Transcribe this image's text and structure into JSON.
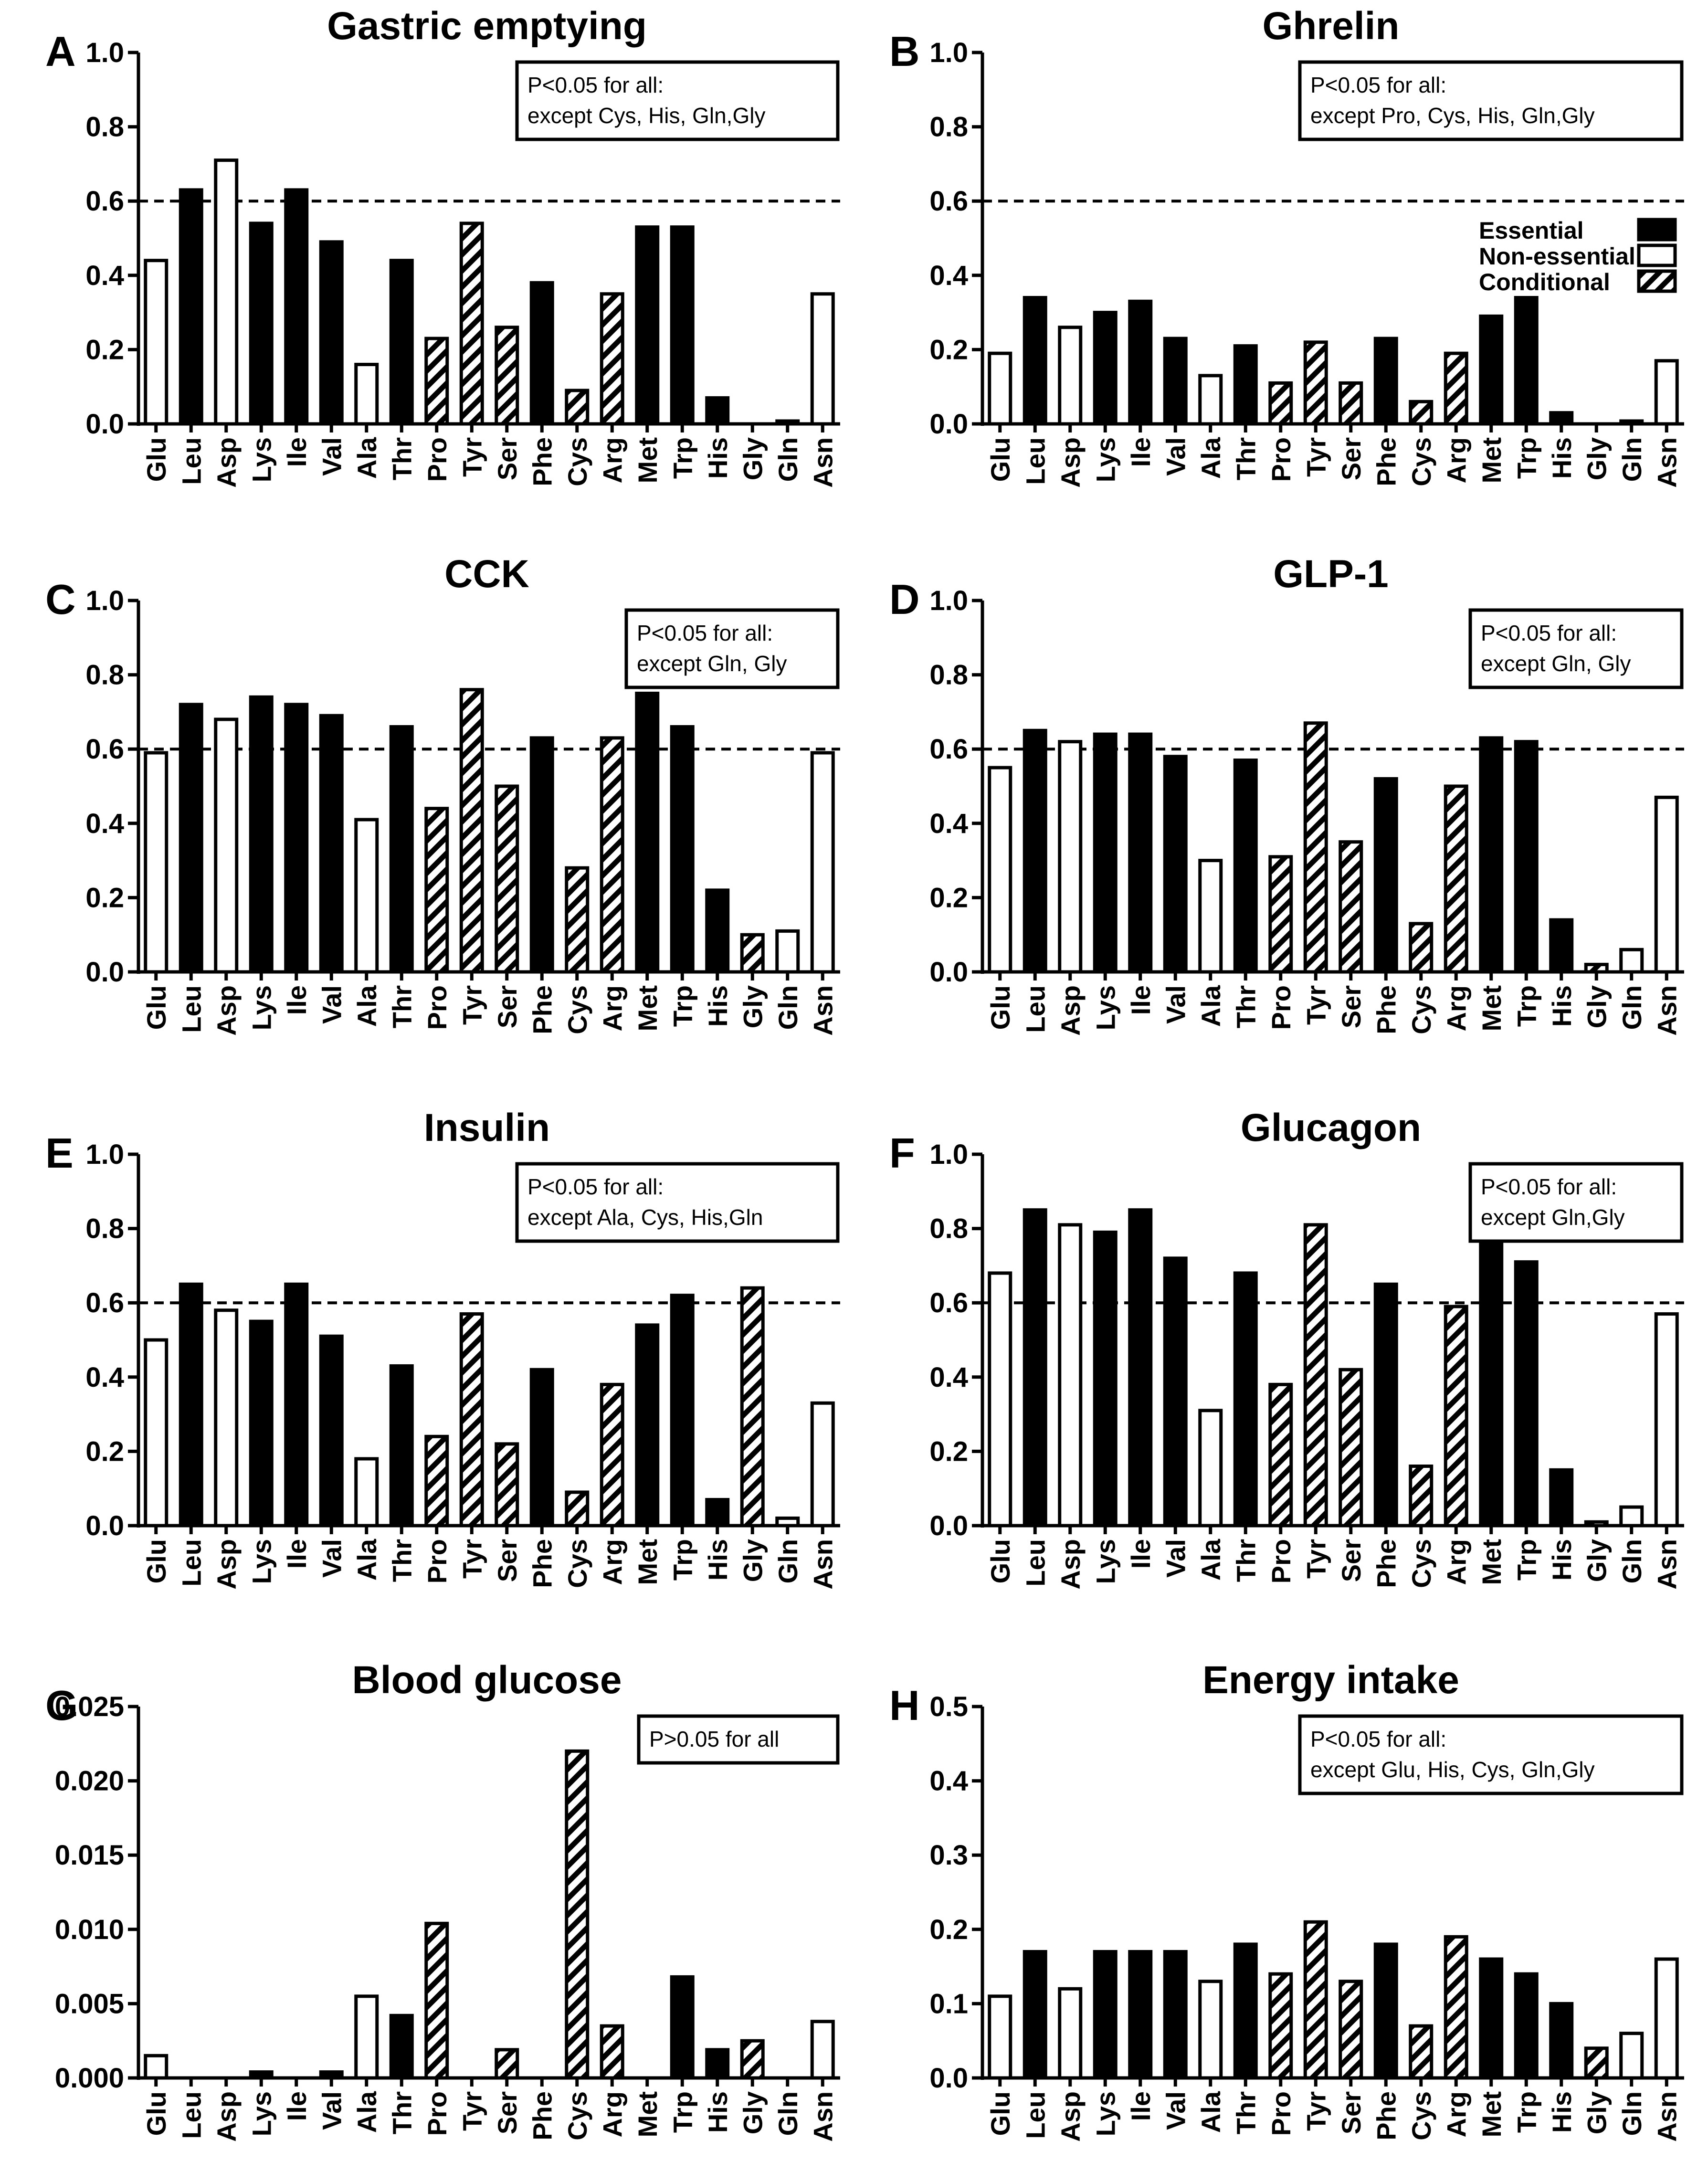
{
  "colors": {
    "essential": "#000000",
    "non_essential": "#ffffff",
    "conditional": "hatch",
    "line": "#000000"
  },
  "legend": {
    "items": [
      {
        "label": "Essential",
        "kind": "essential"
      },
      {
        "label": "Non-essential",
        "kind": "non_essential"
      },
      {
        "label": "Conditional",
        "kind": "conditional"
      }
    ]
  },
  "chart_data": [
    {
      "panel": "A",
      "type": "bar",
      "title": "Gastric emptying",
      "categories": [
        "Glu",
        "Leu",
        "Asp",
        "Lys",
        "Ile",
        "Val",
        "Ala",
        "Thr",
        "Pro",
        "Tyr",
        "Ser",
        "Phe",
        "Cys",
        "Arg",
        "Met",
        "Trp",
        "His",
        "Gly",
        "Gln",
        "Asn"
      ],
      "classes": [
        "non_essential",
        "essential",
        "non_essential",
        "essential",
        "essential",
        "essential",
        "non_essential",
        "essential",
        "conditional",
        "conditional",
        "conditional",
        "essential",
        "conditional",
        "conditional",
        "essential",
        "essential",
        "essential",
        "conditional",
        "non_essential",
        "non_essential"
      ],
      "values": [
        0.44,
        0.63,
        0.71,
        0.54,
        0.63,
        0.49,
        0.16,
        0.44,
        0.23,
        0.54,
        0.26,
        0.38,
        0.09,
        0.35,
        0.53,
        0.53,
        0.07,
        0.0,
        0.005,
        0.35
      ],
      "ylim": [
        0,
        1.0
      ],
      "yticks": [
        "0.0",
        "0.2",
        "0.4",
        "0.6",
        "0.8",
        "1.0"
      ],
      "threshold": 0.6,
      "annotation": [
        "P<0.05 for all:",
        "except Cys, His, Gln,Gly"
      ]
    },
    {
      "panel": "B",
      "type": "bar",
      "title": "Ghrelin",
      "categories": [
        "Glu",
        "Leu",
        "Asp",
        "Lys",
        "Ile",
        "Val",
        "Ala",
        "Thr",
        "Pro",
        "Tyr",
        "Ser",
        "Phe",
        "Cys",
        "Arg",
        "Met",
        "Trp",
        "His",
        "Gly",
        "Gln",
        "Asn"
      ],
      "classes": [
        "non_essential",
        "essential",
        "non_essential",
        "essential",
        "essential",
        "essential",
        "non_essential",
        "essential",
        "conditional",
        "conditional",
        "conditional",
        "essential",
        "conditional",
        "conditional",
        "essential",
        "essential",
        "essential",
        "conditional",
        "non_essential",
        "non_essential"
      ],
      "values": [
        0.19,
        0.34,
        0.26,
        0.3,
        0.33,
        0.23,
        0.13,
        0.21,
        0.11,
        0.22,
        0.11,
        0.23,
        0.06,
        0.19,
        0.29,
        0.34,
        0.03,
        0.0,
        0.003,
        0.17
      ],
      "ylim": [
        0,
        1.0
      ],
      "yticks": [
        "0.0",
        "0.2",
        "0.4",
        "0.6",
        "0.8",
        "1.0"
      ],
      "threshold": 0.6,
      "annotation": [
        "P<0.05 for all:",
        "except Pro, Cys, His, Gln,Gly"
      ]
    },
    {
      "panel": "C",
      "type": "bar",
      "title": "CCK",
      "categories": [
        "Glu",
        "Leu",
        "Asp",
        "Lys",
        "Ile",
        "Val",
        "Ala",
        "Thr",
        "Pro",
        "Tyr",
        "Ser",
        "Phe",
        "Cys",
        "Arg",
        "Met",
        "Trp",
        "His",
        "Gly",
        "Gln",
        "Asn"
      ],
      "classes": [
        "non_essential",
        "essential",
        "non_essential",
        "essential",
        "essential",
        "essential",
        "non_essential",
        "essential",
        "conditional",
        "conditional",
        "conditional",
        "essential",
        "conditional",
        "conditional",
        "essential",
        "essential",
        "essential",
        "conditional",
        "non_essential",
        "non_essential"
      ],
      "values": [
        0.59,
        0.72,
        0.68,
        0.74,
        0.72,
        0.69,
        0.41,
        0.66,
        0.44,
        0.76,
        0.5,
        0.63,
        0.28,
        0.63,
        0.75,
        0.66,
        0.22,
        0.1,
        0.11,
        0.59
      ],
      "ylim": [
        0,
        1.0
      ],
      "yticks": [
        "0.0",
        "0.2",
        "0.4",
        "0.6",
        "0.8",
        "1.0"
      ],
      "threshold": 0.6,
      "annotation": [
        "P<0.05 for all:",
        "except Gln, Gly"
      ]
    },
    {
      "panel": "D",
      "type": "bar",
      "title": "GLP-1",
      "categories": [
        "Glu",
        "Leu",
        "Asp",
        "Lys",
        "Ile",
        "Val",
        "Ala",
        "Thr",
        "Pro",
        "Tyr",
        "Ser",
        "Phe",
        "Cys",
        "Arg",
        "Met",
        "Trp",
        "His",
        "Gly",
        "Gln",
        "Asn"
      ],
      "classes": [
        "non_essential",
        "essential",
        "non_essential",
        "essential",
        "essential",
        "essential",
        "non_essential",
        "essential",
        "conditional",
        "conditional",
        "conditional",
        "essential",
        "conditional",
        "conditional",
        "essential",
        "essential",
        "essential",
        "conditional",
        "non_essential",
        "non_essential"
      ],
      "values": [
        0.55,
        0.65,
        0.62,
        0.64,
        0.64,
        0.58,
        0.3,
        0.57,
        0.31,
        0.67,
        0.35,
        0.52,
        0.13,
        0.5,
        0.63,
        0.62,
        0.14,
        0.02,
        0.06,
        0.47
      ],
      "ylim": [
        0,
        1.0
      ],
      "yticks": [
        "0.0",
        "0.2",
        "0.4",
        "0.6",
        "0.8",
        "1.0"
      ],
      "threshold": 0.6,
      "annotation": [
        "P<0.05 for all:",
        "except Gln, Gly"
      ]
    },
    {
      "panel": "E",
      "type": "bar",
      "title": "Insulin",
      "categories": [
        "Glu",
        "Leu",
        "Asp",
        "Lys",
        "Ile",
        "Val",
        "Ala",
        "Thr",
        "Pro",
        "Tyr",
        "Ser",
        "Phe",
        "Cys",
        "Arg",
        "Met",
        "Trp",
        "His",
        "Gly",
        "Gln",
        "Asn"
      ],
      "classes": [
        "non_essential",
        "essential",
        "non_essential",
        "essential",
        "essential",
        "essential",
        "non_essential",
        "essential",
        "conditional",
        "conditional",
        "conditional",
        "essential",
        "conditional",
        "conditional",
        "essential",
        "essential",
        "essential",
        "conditional",
        "non_essential",
        "non_essential"
      ],
      "values": [
        0.5,
        0.65,
        0.58,
        0.55,
        0.65,
        0.51,
        0.18,
        0.43,
        0.24,
        0.57,
        0.22,
        0.42,
        0.09,
        0.38,
        0.54,
        0.62,
        0.07,
        0.64,
        0.02,
        0.33
      ],
      "ylim": [
        0,
        1.0
      ],
      "yticks": [
        "0.0",
        "0.2",
        "0.4",
        "0.6",
        "0.8",
        "1.0"
      ],
      "threshold": 0.6,
      "annotation": [
        "P<0.05 for all:",
        "except Ala, Cys, His,Gln"
      ]
    },
    {
      "panel": "F",
      "type": "bar",
      "title": "Glucagon",
      "categories": [
        "Glu",
        "Leu",
        "Asp",
        "Lys",
        "Ile",
        "Val",
        "Ala",
        "Thr",
        "Pro",
        "Tyr",
        "Ser",
        "Phe",
        "Cys",
        "Arg",
        "Met",
        "Trp",
        "His",
        "Gly",
        "Gln",
        "Asn"
      ],
      "classes": [
        "non_essential",
        "essential",
        "non_essential",
        "essential",
        "essential",
        "essential",
        "non_essential",
        "essential",
        "conditional",
        "conditional",
        "conditional",
        "essential",
        "conditional",
        "conditional",
        "essential",
        "essential",
        "essential",
        "conditional",
        "non_essential",
        "non_essential"
      ],
      "values": [
        0.68,
        0.85,
        0.81,
        0.79,
        0.85,
        0.72,
        0.31,
        0.68,
        0.38,
        0.81,
        0.42,
        0.65,
        0.16,
        0.59,
        0.8,
        0.71,
        0.15,
        0.01,
        0.05,
        0.57
      ],
      "ylim": [
        0,
        1.0
      ],
      "yticks": [
        "0.0",
        "0.2",
        "0.4",
        "0.6",
        "0.8",
        "1.0"
      ],
      "threshold": 0.6,
      "annotation": [
        "P<0.05 for all:",
        "except  Gln,Gly"
      ]
    },
    {
      "panel": "G",
      "type": "bar",
      "title": "Blood glucose",
      "categories": [
        "Glu",
        "Leu",
        "Asp",
        "Lys",
        "Ile",
        "Val",
        "Ala",
        "Thr",
        "Pro",
        "Tyr",
        "Ser",
        "Phe",
        "Cys",
        "Arg",
        "Met",
        "Trp",
        "His",
        "Gly",
        "Gln",
        "Asn"
      ],
      "classes": [
        "non_essential",
        "essential",
        "non_essential",
        "essential",
        "essential",
        "essential",
        "non_essential",
        "essential",
        "conditional",
        "conditional",
        "conditional",
        "essential",
        "conditional",
        "conditional",
        "essential",
        "essential",
        "essential",
        "conditional",
        "non_essential",
        "non_essential"
      ],
      "values": [
        0.0015,
        0.0,
        0.0,
        0.0004,
        0.0,
        0.0004,
        0.0055,
        0.0042,
        0.0104,
        0.0,
        0.0019,
        0.0,
        0.022,
        0.0035,
        0.0,
        0.0068,
        0.0019,
        0.0025,
        0.0,
        0.0038
      ],
      "ylim": [
        0,
        0.025
      ],
      "yticks": [
        "0.000",
        "0.005",
        "0.010",
        "0.015",
        "0.020",
        "0.025"
      ],
      "threshold": null,
      "annotation": [
        "P>0.05 for all"
      ]
    },
    {
      "panel": "H",
      "type": "bar",
      "title": "Energy intake",
      "categories": [
        "Glu",
        "Leu",
        "Asp",
        "Lys",
        "Ile",
        "Val",
        "Ala",
        "Thr",
        "Pro",
        "Tyr",
        "Ser",
        "Phe",
        "Cys",
        "Arg",
        "Met",
        "Trp",
        "His",
        "Gly",
        "Gln",
        "Asn"
      ],
      "classes": [
        "non_essential",
        "essential",
        "non_essential",
        "essential",
        "essential",
        "essential",
        "non_essential",
        "essential",
        "conditional",
        "conditional",
        "conditional",
        "essential",
        "conditional",
        "conditional",
        "essential",
        "essential",
        "essential",
        "conditional",
        "non_essential",
        "non_essential"
      ],
      "values": [
        0.11,
        0.17,
        0.12,
        0.17,
        0.17,
        0.17,
        0.13,
        0.18,
        0.14,
        0.21,
        0.13,
        0.18,
        0.07,
        0.19,
        0.16,
        0.14,
        0.1,
        0.04,
        0.06,
        0.16
      ],
      "ylim": [
        0,
        0.5
      ],
      "yticks": [
        "0.0",
        "0.1",
        "0.2",
        "0.3",
        "0.4",
        "0.5"
      ],
      "threshold": null,
      "annotation": [
        "P<0.05 for all:",
        "except Glu, His, Cys, Gln,Gly"
      ]
    }
  ]
}
